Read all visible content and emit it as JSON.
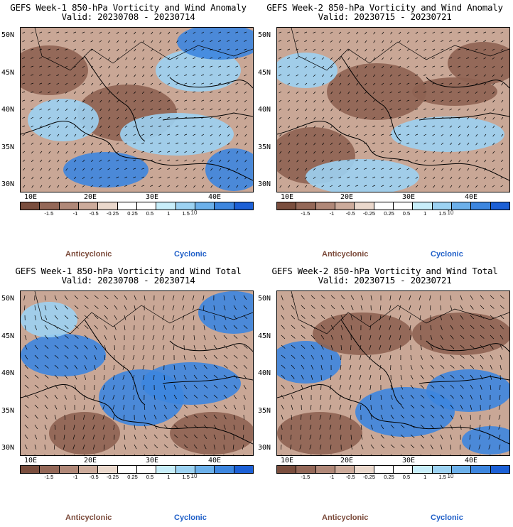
{
  "panels": [
    {
      "title": "GEFS Week-1 850-hPa Vorticity and Wind Anomaly",
      "valid": "Valid: 20230708 - 20230714"
    },
    {
      "title": "GEFS Week-2 850-hPa Vorticity and Wind Anomaly",
      "valid": "Valid: 20230715 - 20230721"
    },
    {
      "title": "GEFS Week-1 850-hPa Vorticity and Wind Total",
      "valid": "Valid: 20230708 - 20230714"
    },
    {
      "title": "GEFS Week-2 850-hPa Vorticity and Wind Total",
      "valid": "Valid: 20230715 - 20230721"
    }
  ],
  "axes": {
    "lat_labels": [
      "50N",
      "45N",
      "40N",
      "35N",
      "30N"
    ],
    "lon_labels": [
      "10E",
      "20E",
      "30E",
      "40E"
    ]
  },
  "colorbar": {
    "colors": [
      "#7a4e3e",
      "#946858",
      "#b08878",
      "#ccab9b",
      "#ead8cc",
      "#ffffff",
      "#ffffff",
      "#c8eefa",
      "#9cd2f2",
      "#6cb0ea",
      "#3d86df",
      "#1c60d6"
    ],
    "tick_labels": [
      "-1.5",
      "-1",
      "-0.5",
      "-0.25",
      "0.25",
      "0.5",
      "1",
      "1.5"
    ],
    "scale_label": "10"
  },
  "legend": {
    "anticyclonic": "Anticyclonic",
    "cyclonic": "Cyclonic"
  },
  "colors": {
    "anticyclonic": "#7b4a3a",
    "cyclonic": "#1f5fc8"
  }
}
